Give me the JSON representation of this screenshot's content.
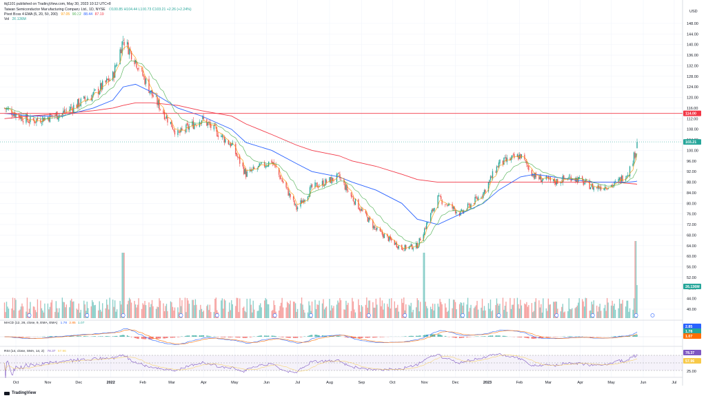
{
  "header": {
    "published_by": "tkj1101 published on TradingView.com, May 30, 2023 10:12 UTC+8",
    "symbol_line": "Taiwan Semiconductor Manufacturing Company Ltd., 1D, NYSE",
    "ohlc": "O100.85  H104.44  L100.73  C103.21  +2.26 (+2.24%)",
    "ema_line_label": "Pivot Boss 4 EMA (5, 20, 50, 200)",
    "ema_values": [
      "97.05",
      "90.32",
      "88.44",
      "87.19"
    ],
    "vol_label": "Vol",
    "vol_value": "26.136M",
    "currency": "USD"
  },
  "colors": {
    "up": "#26a69a",
    "down": "#ef5350",
    "ema5": "#ff9800",
    "ema20": "#4caf50",
    "ema50": "#2962ff",
    "ema200": "#f23645",
    "resistance": "#f23645",
    "macd": "#2962ff",
    "signal": "#ff6d00",
    "rsi": "#7e57c2",
    "rsi_ma": "#f7c948"
  },
  "price_axis": {
    "ticks": [
      "148.00",
      "144.00",
      "140.00",
      "136.00",
      "132.00",
      "128.00",
      "124.00",
      "120.00",
      "116.00",
      "112.00",
      "108.00",
      "104.00",
      "100.00",
      "96.00",
      "92.00",
      "88.00",
      "84.00",
      "80.00",
      "76.00",
      "72.00",
      "68.00",
      "64.00",
      "60.00",
      "56.00",
      "52.00",
      "48.00",
      "44.00",
      "40.00"
    ],
    "resistance_label": "114.00",
    "last_price_label": "103.21",
    "volume_label": "26.136M"
  },
  "macd_panel": {
    "label": "MACD (12, 26, close, 9, EMA, EMA)",
    "values": [
      "1.78",
      "2.85",
      "1.07"
    ],
    "axis_ticks": [
      "2.85",
      "1.78",
      "1.07"
    ]
  },
  "rsi_panel": {
    "label": "RSI (14, close, SMA, 14, 2)",
    "values": [
      "78.37",
      "57.96"
    ],
    "axis_ticks": [
      "78.37",
      "57.96",
      "25.00"
    ],
    "levels": [
      "75.00",
      "50.00",
      "25.00"
    ]
  },
  "time_axis": [
    "Oct",
    "Nov",
    "Dec",
    "2022",
    "Feb",
    "Mar",
    "Apr",
    "May",
    "Jun",
    "Jul",
    "Aug",
    "Sep",
    "Oct",
    "Nov",
    "Dec",
    "2023",
    "Feb",
    "Mar",
    "Apr",
    "May",
    "Jun",
    "Jul"
  ],
  "branding": "TradingView",
  "chart_data": {
    "type": "line",
    "series_kind": "candlestick",
    "title": "Taiwan Semiconductor Manufacturing Company Ltd., 1D, NYSE",
    "ylabel": "USD",
    "ylim": [
      38,
      150
    ],
    "resistance_level": 114,
    "last_close": 103.21,
    "x": [
      "2021-09-20",
      "2021-10-15",
      "2021-11-15",
      "2021-12-15",
      "2022-01-03",
      "2022-01-13",
      "2022-01-25",
      "2022-02-10",
      "2022-03-07",
      "2022-03-30",
      "2022-04-28",
      "2022-05-12",
      "2022-06-06",
      "2022-06-30",
      "2022-07-15",
      "2022-08-10",
      "2022-08-23",
      "2022-09-15",
      "2022-10-10",
      "2022-10-25",
      "2022-11-14",
      "2022-12-06",
      "2022-12-28",
      "2023-01-12",
      "2023-02-02",
      "2023-02-16",
      "2023-03-06",
      "2023-03-24",
      "2023-04-14",
      "2023-05-04",
      "2023-05-18",
      "2023-05-25",
      "2023-05-26"
    ],
    "series": [
      {
        "values": [
          116,
          111,
          114,
          121,
          128,
          142,
          134,
          121,
          106,
          112,
          102,
          91,
          96,
          78,
          86,
          90,
          82,
          70,
          63,
          64,
          82,
          76,
          84,
          95,
          98,
          90,
          88,
          90,
          86,
          87,
          92,
          100,
          103.21
        ]
      }
    ],
    "ema_series": [
      {
        "name": "EMA 200",
        "values": [
          112,
          113,
          114,
          115,
          116,
          117,
          118,
          118,
          117,
          115,
          113,
          110,
          106,
          102,
          100,
          98,
          96,
          94,
          91,
          89,
          88,
          88,
          88,
          88,
          88,
          88,
          88,
          88,
          88,
          88,
          87.5,
          87.3,
          87.19
        ]
      },
      {
        "name": "EMA 50",
        "values": [
          114,
          113,
          113,
          116,
          119,
          124,
          125,
          122,
          116,
          113,
          108,
          103,
          100,
          95,
          92,
          90,
          88,
          85,
          80,
          74,
          72,
          76,
          80,
          85,
          90,
          91,
          90,
          89,
          88,
          88,
          88,
          88.3,
          88.44
        ]
      }
    ],
    "volume_peaks": [
      {
        "date": "2022-01-13",
        "value": "high"
      },
      {
        "date": "2022-10-31",
        "value": "high"
      },
      {
        "date": "2023-05-25",
        "value": "highest"
      }
    ],
    "volume_last": "26.136M",
    "macd_last": {
      "macd": 1.78,
      "signal": 2.85,
      "histogram": 1.07
    },
    "rsi_last": {
      "rsi": 78.37,
      "rsi_ma": 57.96
    }
  }
}
